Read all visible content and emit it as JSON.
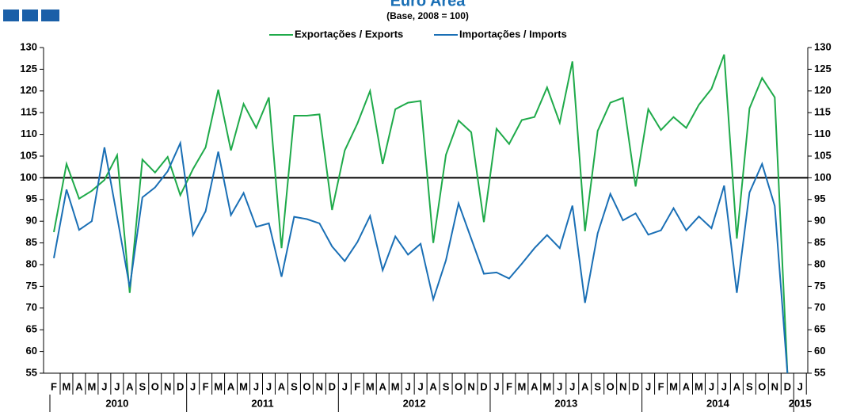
{
  "chart_data": {
    "type": "line",
    "title": "Euro Area",
    "subtitle": "(Base, 2008 = 100)",
    "categories": [
      "F",
      "M",
      "A",
      "M",
      "J",
      "J",
      "A",
      "S",
      "O",
      "N",
      "D",
      "J",
      "F",
      "M",
      "A",
      "M",
      "J",
      "J",
      "A",
      "S",
      "O",
      "N",
      "D",
      "J",
      "F",
      "M",
      "A",
      "M",
      "J",
      "J",
      "A",
      "S",
      "O",
      "N",
      "D",
      "J",
      "F",
      "M",
      "A",
      "M",
      "J",
      "J",
      "A",
      "S",
      "O",
      "N",
      "D",
      "J",
      "F",
      "M",
      "A",
      "M",
      "J",
      "J",
      "A",
      "S",
      "O",
      "N",
      "D",
      "J"
    ],
    "years": [
      "2010",
      "2011",
      "2012",
      "2013",
      "2014",
      "2015"
    ],
    "series": [
      {
        "name": "Exportações / Exports",
        "color": "#1faa4a",
        "values": [
          87.5,
          103.2,
          95.2,
          97,
          99.5,
          105.2,
          73.5,
          104.2,
          101.2,
          104.8,
          96,
          102,
          107,
          120.3,
          106.3,
          117,
          111.5,
          118.5,
          83.8,
          114.3,
          114.3,
          114.6,
          92.6,
          106.3,
          112.5,
          120,
          103.2,
          115.8,
          117.3,
          117.7,
          85,
          105.3,
          113.2,
          110.5,
          89.8,
          111.3,
          107.8,
          113.3,
          114,
          120.8,
          112.7,
          126.8,
          87.7,
          110.8,
          117.3,
          118.4,
          98,
          115.8,
          111,
          114,
          111.5,
          116.8,
          120.5,
          128.4,
          86,
          116,
          123,
          118.5,
          55,
          null
        ]
      },
      {
        "name": "Importações / Imports",
        "color": "#1a6fb5",
        "values": [
          81.5,
          97.3,
          88,
          90,
          107,
          91,
          74.8,
          95.5,
          97.8,
          101.5,
          108,
          86.8,
          92.3,
          106,
          91.4,
          96.5,
          88.7,
          89.5,
          77.2,
          91,
          90.5,
          89.5,
          84.2,
          80.8,
          85.2,
          91.2,
          78.7,
          86.5,
          82.3,
          84.8,
          72,
          81,
          94.1,
          86,
          77.9,
          78.2,
          76.8,
          80.2,
          83.8,
          86.8,
          83.8,
          93.6,
          71.2,
          87.2,
          96.3,
          90.2,
          91.8,
          86.9,
          87.9,
          93,
          87.9,
          91.1,
          88.4,
          98.2,
          73.5,
          96.6,
          103.2,
          93.5,
          55,
          null
        ]
      }
    ],
    "reference_line": 100,
    "ylim": [
      55,
      130
    ],
    "yticks": [
      55,
      60,
      65,
      70,
      75,
      80,
      85,
      90,
      95,
      100,
      105,
      110,
      115,
      120,
      125,
      130
    ]
  }
}
